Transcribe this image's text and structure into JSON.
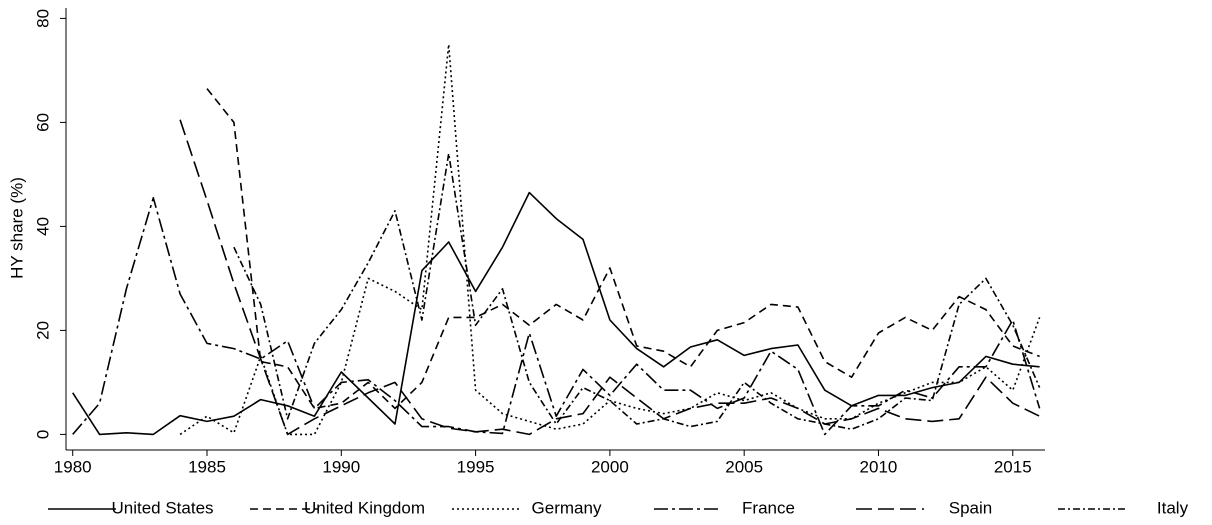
{
  "chart_data": {
    "type": "line",
    "y_label": "HY share (%)",
    "x": [
      1980,
      1981,
      1982,
      1983,
      1984,
      1985,
      1986,
      1987,
      1988,
      1989,
      1990,
      1991,
      1992,
      1993,
      1994,
      1995,
      1996,
      1997,
      1998,
      1999,
      2000,
      2001,
      2002,
      2003,
      2004,
      2005,
      2006,
      2007,
      2008,
      2009,
      2010,
      2011,
      2012,
      2013,
      2014,
      2015,
      2016
    ],
    "xlim": [
      1979.75,
      2016.2
    ],
    "xticks": [
      1980,
      1985,
      1990,
      1995,
      2000,
      2005,
      2010,
      2015
    ],
    "ylim": [
      -3,
      82
    ],
    "yticks": [
      0,
      20,
      40,
      60,
      80
    ],
    "grid": false,
    "legend": "bottom",
    "series": [
      {
        "name": "United States",
        "color": "#000000",
        "dash": "none",
        "values": [
          8,
          0,
          0.3,
          0,
          3.6,
          2.5,
          3.5,
          6.7,
          5.5,
          3.5,
          12,
          7,
          2,
          31.5,
          37,
          27.5,
          36,
          46.5,
          41.5,
          37.5,
          22,
          16.5,
          13,
          16.8,
          18.2,
          15.2,
          16.5,
          17.2,
          8.5,
          5.5,
          7.5,
          7.5,
          9,
          10,
          15,
          13.5,
          13
        ]
      },
      {
        "name": "United Kingdom",
        "color": "#000000",
        "dash": "8 5",
        "values": [
          null,
          null,
          null,
          null,
          null,
          66.5,
          60,
          14,
          13,
          5,
          6,
          10,
          5,
          10,
          22.5,
          22.5,
          25,
          21,
          25,
          22,
          32,
          17,
          16,
          13,
          20,
          21.5,
          25,
          24.5,
          14,
          11,
          19.5,
          22.5,
          20,
          26.5,
          24,
          17,
          15
        ]
      },
      {
        "name": "Germany",
        "color": "#000000",
        "dash": "2 3",
        "values": [
          null,
          null,
          null,
          null,
          0,
          3.5,
          0.3,
          15,
          0,
          0,
          10,
          30,
          27.5,
          24,
          75,
          8.5,
          4,
          2.5,
          1,
          2,
          6.5,
          5,
          4,
          5,
          8,
          6.5,
          8,
          5,
          3,
          3,
          6,
          8,
          10,
          10,
          13,
          8.5,
          22.5
        ]
      },
      {
        "name": "France",
        "color": "#000000",
        "dash": "14 4 3 4",
        "values": [
          0,
          6,
          28,
          45.5,
          27,
          17.5,
          16.5,
          14.5,
          18,
          5,
          10,
          10.5,
          6.5,
          1.5,
          1.5,
          0.5,
          0.2,
          19.5,
          3.5,
          12.5,
          7.5,
          13.5,
          8.5,
          8.5,
          5,
          7,
          16,
          12.5,
          0,
          5.5,
          5.5,
          8.5,
          7,
          13,
          13,
          22,
          5
        ]
      },
      {
        "name": "Spain",
        "color": "#000000",
        "dash": "16 6",
        "values": [
          null,
          null,
          null,
          null,
          60.5,
          45,
          29,
          14.5,
          0,
          3,
          5.5,
          8,
          10,
          3,
          1.2,
          0.5,
          1,
          0,
          3,
          4,
          11,
          7,
          3,
          5,
          6,
          6,
          7,
          5,
          2,
          3,
          5,
          3,
          2.5,
          3,
          11,
          6,
          3.5
        ]
      },
      {
        "name": "Italy",
        "color": "#000000",
        "dash": "7 3 2 3",
        "values": [
          null,
          null,
          null,
          null,
          null,
          null,
          36,
          25,
          3,
          17.5,
          24,
          33,
          43,
          22,
          54,
          21,
          28,
          10,
          2,
          9,
          6.5,
          2,
          3,
          1.5,
          2.5,
          10,
          6,
          3,
          2,
          1,
          3,
          7,
          6.5,
          25,
          30,
          21,
          9
        ]
      }
    ]
  }
}
